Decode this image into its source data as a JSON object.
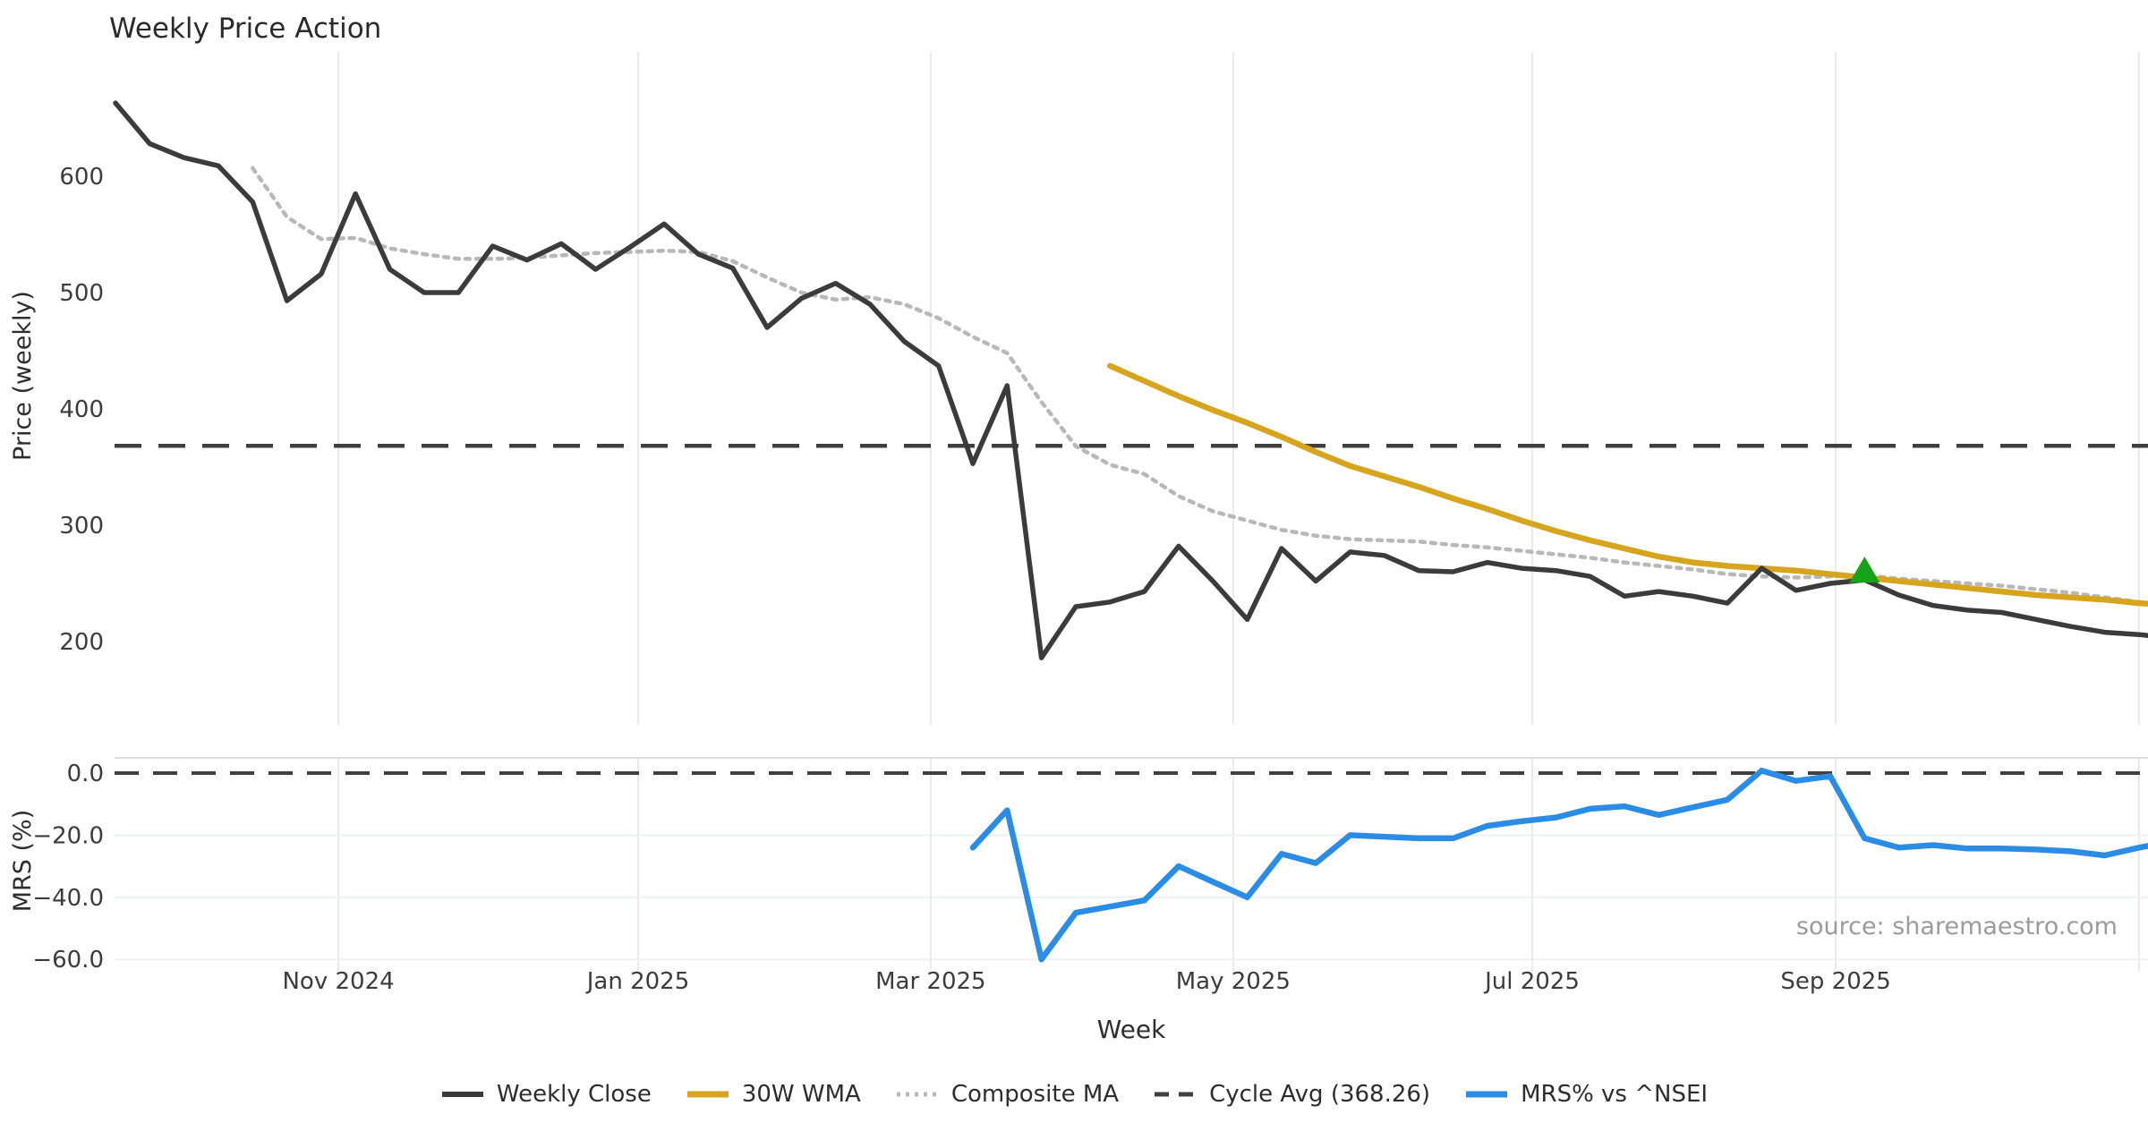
{
  "title": "Weekly Price Action",
  "source_text": "source: sharemaestro.com",
  "x_axis": {
    "label": "Week",
    "ticks": [
      {
        "pos": 6.5,
        "label": "Nov 2024"
      },
      {
        "pos": 15.24,
        "label": "Jan 2025"
      },
      {
        "pos": 23.77,
        "label": "Mar 2025"
      },
      {
        "pos": 32.59,
        "label": "May 2025"
      },
      {
        "pos": 41.31,
        "label": "Jul 2025"
      },
      {
        "pos": 50.16,
        "label": "Sep 2025"
      }
    ],
    "extra_gridline_pos": 59.0
  },
  "legend": [
    {
      "label": "Weekly Close",
      "color": "#3b3b3b",
      "style": "solid"
    },
    {
      "label": "30W WMA",
      "color": "#d6a41d",
      "style": "solid-thick"
    },
    {
      "label": "Composite MA",
      "color": "#b8b8b8",
      "style": "dotted"
    },
    {
      "label": "Cycle Avg (368.26)",
      "color": "#3f3f3f",
      "style": "dashed"
    },
    {
      "label": "MRS% vs ^NSEI",
      "color": "#2b8ce6",
      "style": "solid-thick"
    }
  ],
  "chart_data": [
    {
      "type": "line",
      "panel": "price",
      "ylabel": "Price (weekly)",
      "yticks": [
        600,
        500,
        400,
        300,
        200
      ],
      "ylim": [
        128,
        707
      ],
      "grid": "vertical-months",
      "cycle_avg": 368.26,
      "marker": {
        "shape": "triangle-up",
        "color": "#17a317",
        "week": 51,
        "value": 253
      },
      "series": [
        {
          "name": "Weekly Close",
          "color": "#3b3b3b",
          "style": "solid",
          "start_week": 0,
          "values": [
            663,
            628,
            616,
            609,
            578,
            493,
            516,
            585,
            520,
            500,
            500,
            540,
            528,
            542,
            520,
            539,
            559,
            533,
            521,
            470,
            495,
            508,
            490,
            458,
            437,
            353,
            420,
            186,
            230,
            234,
            243,
            282,
            252,
            219,
            280,
            252,
            277,
            274,
            261,
            260,
            268,
            263,
            261,
            256,
            239,
            243,
            239,
            233,
            263,
            244,
            250,
            253,
            240,
            231,
            227,
            225,
            219,
            213,
            208,
            206,
            203
          ]
        },
        {
          "name": "30W WMA",
          "color": "#d6a41d",
          "style": "solid",
          "start_week": 29,
          "values": [
            437,
            424,
            411,
            399,
            388,
            376,
            363,
            351,
            342,
            333,
            323,
            314,
            304,
            295,
            287,
            280,
            273,
            268,
            265,
            263,
            261,
            258,
            255,
            252,
            249,
            246,
            243,
            240,
            238,
            236,
            233,
            231
          ]
        },
        {
          "name": "Composite MA",
          "color": "#b8b8b8",
          "style": "dotted",
          "start_week": 4,
          "values": [
            607,
            565,
            546,
            547,
            538,
            533,
            529,
            529,
            530,
            532,
            534,
            535,
            536,
            535,
            527,
            513,
            500,
            494,
            496,
            490,
            478,
            462,
            448,
            406,
            368,
            352,
            344,
            325,
            312,
            304,
            296,
            291,
            288,
            287,
            286,
            283,
            281,
            278,
            275,
            272,
            268,
            265,
            262,
            258,
            256,
            255,
            256,
            257,
            254,
            252,
            250,
            248,
            245,
            242,
            238,
            234,
            231
          ]
        }
      ]
    },
    {
      "type": "line",
      "panel": "mrs",
      "ylabel": "MRS (%)",
      "yticks": [
        "0.0",
        "−20.0",
        "−40.0",
        "−60.0"
      ],
      "ytick_values": [
        0,
        -20,
        -40,
        -60
      ],
      "ylim": [
        -63.7,
        4.9
      ],
      "grid": "both",
      "zero_line": 0,
      "series": [
        {
          "name": "MRS% vs ^NSEI",
          "color": "#2b8ce6",
          "style": "solid",
          "start_week": 25,
          "values": [
            -24,
            -12,
            -60,
            -45,
            -43,
            -41,
            -30,
            -35,
            -40,
            -26,
            -29,
            -20,
            -20.5,
            -21,
            -21,
            -17,
            -15.5,
            -14.3,
            -11.5,
            -10.7,
            -13.5,
            -11,
            -8.6,
            0.8,
            -2.5,
            -1,
            -21,
            -24,
            -23.2,
            -24.3,
            -24.3,
            -24.6,
            -25.2,
            -26.5,
            -24,
            -22
          ]
        }
      ]
    }
  ]
}
